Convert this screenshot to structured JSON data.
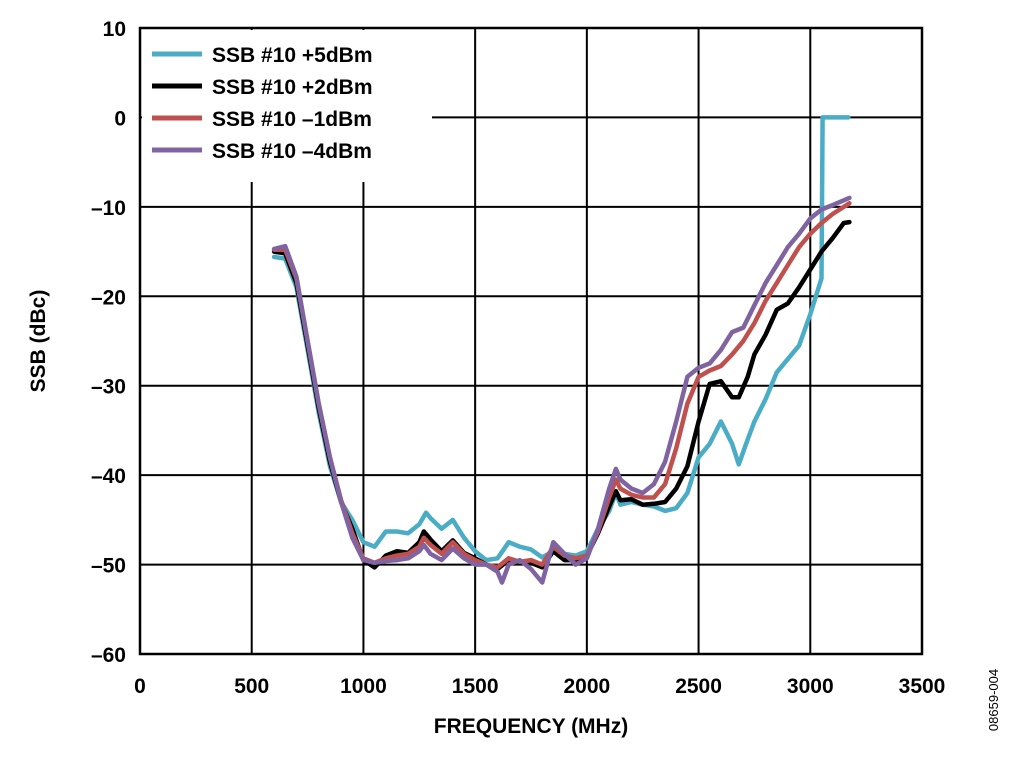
{
  "figure_id": "08659-004",
  "chart_data": {
    "type": "line",
    "title": "",
    "xlabel": "FREQUENCY (MHz)",
    "ylabel": "SSB (dBc)",
    "xlim": [
      0,
      3500
    ],
    "ylim": [
      -60,
      10
    ],
    "xticks": [
      0,
      500,
      1000,
      1500,
      2000,
      2500,
      3000,
      3500
    ],
    "yticks": [
      10,
      0,
      -10,
      -20,
      -30,
      -40,
      -50,
      -60
    ],
    "ytick_labels": [
      "10",
      "0",
      "–10",
      "–20",
      "–30",
      "–40",
      "–50",
      "–60"
    ],
    "grid": true,
    "legend_position": "top-left",
    "series": [
      {
        "name": "SSB #10 +5dBm",
        "color": "#4bacc6",
        "x": [
          600,
          650,
          700,
          750,
          800,
          850,
          900,
          950,
          1000,
          1050,
          1100,
          1150,
          1200,
          1250,
          1280,
          1300,
          1350,
          1400,
          1450,
          1500,
          1550,
          1600,
          1650,
          1700,
          1750,
          1800,
          1850,
          1900,
          1950,
          2000,
          2050,
          2100,
          2130,
          2150,
          2200,
          2250,
          2300,
          2350,
          2400,
          2450,
          2500,
          2550,
          2600,
          2650,
          2680,
          2720,
          2750,
          2800,
          2850,
          2900,
          2950,
          3000,
          3050,
          3055,
          3170
        ],
        "y": [
          -15.6,
          -15.8,
          -19,
          -26,
          -33,
          -39,
          -43,
          -45,
          -47.5,
          -48,
          -46.3,
          -46.3,
          -46.5,
          -45.5,
          -44.2,
          -44.8,
          -46,
          -45,
          -47,
          -48.5,
          -49.5,
          -49.3,
          -47.5,
          -48,
          -48.3,
          -49.2,
          -48.5,
          -48.8,
          -49,
          -48.5,
          -46,
          -44,
          -42,
          -43.3,
          -43,
          -43.3,
          -43.5,
          -44,
          -43.7,
          -42,
          -38,
          -36.5,
          -34,
          -36.5,
          -38.8,
          -36,
          -34,
          -31.5,
          -28.5,
          -27,
          -25.5,
          -22,
          -18,
          0,
          0
        ]
      },
      {
        "name": "SSB #10 +2dBm",
        "color": "#000000",
        "x": [
          600,
          650,
          700,
          750,
          800,
          850,
          900,
          950,
          1000,
          1050,
          1100,
          1150,
          1200,
          1250,
          1270,
          1300,
          1350,
          1400,
          1450,
          1500,
          1550,
          1600,
          1650,
          1700,
          1750,
          1800,
          1850,
          1900,
          1950,
          2000,
          2050,
          2100,
          2130,
          2150,
          2200,
          2250,
          2300,
          2350,
          2400,
          2450,
          2500,
          2550,
          2600,
          2650,
          2680,
          2720,
          2750,
          2800,
          2850,
          2900,
          2950,
          3000,
          3050,
          3100,
          3150,
          3175
        ],
        "y": [
          -15,
          -15.2,
          -18.5,
          -25.5,
          -32.5,
          -38.5,
          -43,
          -46,
          -49.5,
          -50.3,
          -49,
          -48.5,
          -48.7,
          -47.5,
          -46.3,
          -47.2,
          -48.5,
          -47.3,
          -48.7,
          -49.3,
          -50,
          -50.5,
          -49.5,
          -49.8,
          -49.8,
          -50.3,
          -48.5,
          -49.5,
          -49.5,
          -49,
          -46.5,
          -43.5,
          -41.8,
          -42.8,
          -42.7,
          -43.3,
          -43.2,
          -43,
          -41.5,
          -39,
          -34,
          -29.8,
          -29.5,
          -31.3,
          -31.3,
          -29,
          -26.5,
          -24.3,
          -21.5,
          -20.8,
          -19,
          -17,
          -15,
          -13.5,
          -11.8,
          -11.7
        ]
      },
      {
        "name": "SSB #10 –1dBm",
        "color": "#c0504d",
        "x": [
          600,
          650,
          700,
          750,
          800,
          850,
          900,
          950,
          1000,
          1050,
          1100,
          1150,
          1200,
          1250,
          1270,
          1300,
          1350,
          1400,
          1450,
          1500,
          1550,
          1600,
          1650,
          1700,
          1750,
          1800,
          1850,
          1900,
          1950,
          2000,
          2050,
          2100,
          2130,
          2150,
          2200,
          2250,
          2300,
          2350,
          2400,
          2450,
          2500,
          2550,
          2600,
          2650,
          2700,
          2750,
          2800,
          2850,
          2900,
          2950,
          3000,
          3050,
          3100,
          3150,
          3175
        ],
        "y": [
          -14.8,
          -14.8,
          -18,
          -25,
          -32,
          -38,
          -42.8,
          -46.5,
          -49.3,
          -49.8,
          -49.3,
          -49,
          -48.8,
          -48,
          -47,
          -47.8,
          -48.8,
          -47.5,
          -48.8,
          -49.5,
          -50,
          -50.3,
          -49.3,
          -49.7,
          -49.5,
          -50,
          -48,
          -49,
          -49.3,
          -49,
          -46.3,
          -42.5,
          -40.5,
          -41.5,
          -42.2,
          -42.5,
          -42.5,
          -41,
          -37,
          -32,
          -29,
          -28.3,
          -27.8,
          -26.5,
          -25,
          -23,
          -20.5,
          -18.5,
          -16.5,
          -14.5,
          -13,
          -11.8,
          -10.8,
          -10,
          -9.6
        ]
      },
      {
        "name": "SSB #10 –4dBm",
        "color": "#8064a2",
        "x": [
          600,
          650,
          700,
          750,
          800,
          850,
          900,
          950,
          1000,
          1050,
          1100,
          1150,
          1200,
          1250,
          1270,
          1300,
          1350,
          1400,
          1450,
          1500,
          1550,
          1600,
          1620,
          1650,
          1700,
          1750,
          1800,
          1850,
          1900,
          1950,
          2000,
          2050,
          2100,
          2130,
          2150,
          2200,
          2250,
          2300,
          2350,
          2400,
          2450,
          2500,
          2550,
          2600,
          2650,
          2700,
          2750,
          2800,
          2850,
          2900,
          2950,
          3000,
          3050,
          3100,
          3175
        ],
        "y": [
          -14.7,
          -14.4,
          -17.8,
          -25,
          -32,
          -38,
          -43,
          -47,
          -49.5,
          -49.8,
          -49.6,
          -49.5,
          -49.3,
          -48.5,
          -47.8,
          -48.8,
          -49.5,
          -48.2,
          -49.3,
          -50,
          -50,
          -50.8,
          -52,
          -50,
          -49.5,
          -50.5,
          -52,
          -47.5,
          -48.8,
          -50,
          -49.3,
          -46,
          -41.5,
          -39.3,
          -40.5,
          -41.5,
          -42,
          -41,
          -38.5,
          -34,
          -29,
          -28,
          -27.5,
          -26,
          -24,
          -23.5,
          -21,
          -18.5,
          -16.5,
          -14.5,
          -13,
          -11.3,
          -10.3,
          -9.8,
          -9
        ]
      }
    ]
  }
}
